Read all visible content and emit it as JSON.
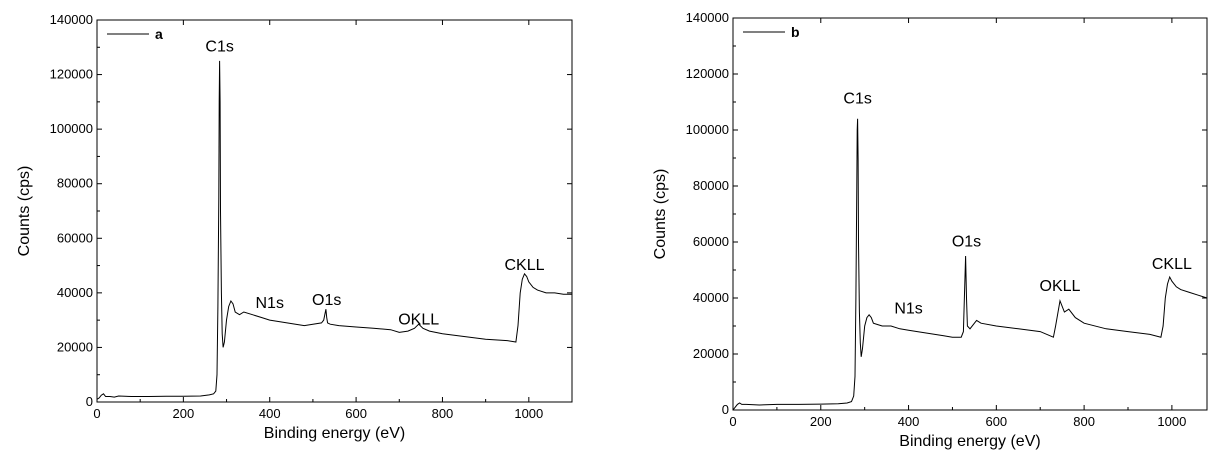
{
  "chart_data": [
    {
      "type": "line",
      "xlabel": "Binding energy (eV)",
      "ylabel": "Counts (cps)",
      "xlim": [
        0,
        1100
      ],
      "ylim": [
        0,
        140000
      ],
      "xticks": [
        0,
        200,
        400,
        600,
        800,
        1000
      ],
      "yticks": [
        0,
        20000,
        40000,
        60000,
        80000,
        100000,
        120000,
        140000
      ],
      "legend": "top-left",
      "grid": false,
      "series": [
        {
          "name": "a",
          "x": [
            0,
            5,
            10,
            15,
            20,
            30,
            40,
            50,
            80,
            120,
            160,
            200,
            240,
            260,
            270,
            275,
            278,
            280,
            282,
            283,
            284,
            285,
            286,
            288,
            290,
            292,
            295,
            300,
            305,
            310,
            315,
            320,
            330,
            340,
            360,
            380,
            400,
            420,
            440,
            460,
            480,
            500,
            520,
            525,
            530,
            532,
            534,
            540,
            560,
            600,
            640,
            680,
            700,
            720,
            735,
            745,
            755,
            770,
            800,
            850,
            900,
            950,
            970,
            975,
            980,
            985,
            990,
            995,
            1000,
            1010,
            1020,
            1040,
            1060,
            1080,
            1100
          ],
          "values": [
            1000,
            1500,
            2500,
            3000,
            2000,
            2000,
            1800,
            2200,
            2000,
            2000,
            2100,
            2100,
            2200,
            2600,
            3000,
            4000,
            10000,
            35000,
            75000,
            110000,
            125000,
            110000,
            70000,
            40000,
            25000,
            20000,
            22000,
            30000,
            35000,
            37000,
            36000,
            33000,
            32000,
            33000,
            32000,
            31000,
            30000,
            29500,
            29000,
            28500,
            28000,
            28500,
            29000,
            30000,
            34000,
            31000,
            29000,
            28500,
            28000,
            27500,
            27000,
            26500,
            25500,
            26000,
            27000,
            28500,
            27000,
            26000,
            25000,
            24000,
            23000,
            22500,
            22000,
            28000,
            40000,
            45000,
            47000,
            46000,
            44000,
            42000,
            41000,
            40000,
            40000,
            39500,
            39500
          ]
        }
      ],
      "annotations": [
        {
          "text": "C1s",
          "x": 284,
          "y": 127000
        },
        {
          "text": "N1s",
          "x": 400,
          "y": 33000
        },
        {
          "text": "O1s",
          "x": 532,
          "y": 34000
        },
        {
          "text": "OKLL",
          "x": 745,
          "y": 27000
        },
        {
          "text": "CKLL",
          "x": 990,
          "y": 47000
        }
      ]
    },
    {
      "type": "line",
      "xlabel": "Binding energy (eV)",
      "ylabel": "Counts (cps)",
      "xlim": [
        0,
        1080
      ],
      "ylim": [
        0,
        140000
      ],
      "xticks": [
        0,
        200,
        400,
        600,
        800,
        1000
      ],
      "yticks": [
        0,
        20000,
        40000,
        60000,
        80000,
        100000,
        120000,
        140000
      ],
      "legend": "top-left",
      "grid": false,
      "series": [
        {
          "name": "b",
          "x": [
            0,
            5,
            10,
            15,
            20,
            30,
            60,
            100,
            150,
            200,
            240,
            260,
            270,
            275,
            278,
            280,
            282,
            283,
            284,
            285,
            286,
            288,
            290,
            292,
            295,
            300,
            305,
            310,
            315,
            320,
            330,
            340,
            360,
            380,
            400,
            420,
            440,
            460,
            480,
            500,
            520,
            525,
            530,
            532,
            534,
            540,
            550,
            555,
            565,
            600,
            650,
            700,
            730,
            735,
            745,
            755,
            765,
            780,
            800,
            850,
            900,
            950,
            975,
            980,
            985,
            990,
            995,
            1000,
            1010,
            1020,
            1040,
            1060,
            1080
          ],
          "values": [
            0,
            1000,
            2000,
            2500,
            2000,
            2000,
            1800,
            2000,
            2000,
            2100,
            2200,
            2500,
            3000,
            5000,
            12000,
            40000,
            80000,
            100000,
            104000,
            90000,
            60000,
            35000,
            24000,
            19000,
            22000,
            30000,
            33000,
            34000,
            33000,
            31000,
            30500,
            30000,
            30000,
            29000,
            28500,
            28000,
            27500,
            27000,
            26500,
            26000,
            26000,
            28000,
            55000,
            40000,
            30000,
            29000,
            31000,
            32000,
            31000,
            30000,
            29000,
            28000,
            26000,
            30000,
            39000,
            35000,
            36000,
            33000,
            31000,
            29000,
            28000,
            27000,
            26000,
            30000,
            40000,
            45000,
            47500,
            46000,
            44000,
            43000,
            42000,
            41000,
            40000
          ]
        }
      ],
      "annotations": [
        {
          "text": "C1s",
          "x": 284,
          "y": 108000
        },
        {
          "text": "N1s",
          "x": 400,
          "y": 33000
        },
        {
          "text": "O1s",
          "x": 532,
          "y": 57000
        },
        {
          "text": "OKLL",
          "x": 745,
          "y": 41000
        },
        {
          "text": "CKLL",
          "x": 1000,
          "y": 49000
        }
      ]
    }
  ]
}
